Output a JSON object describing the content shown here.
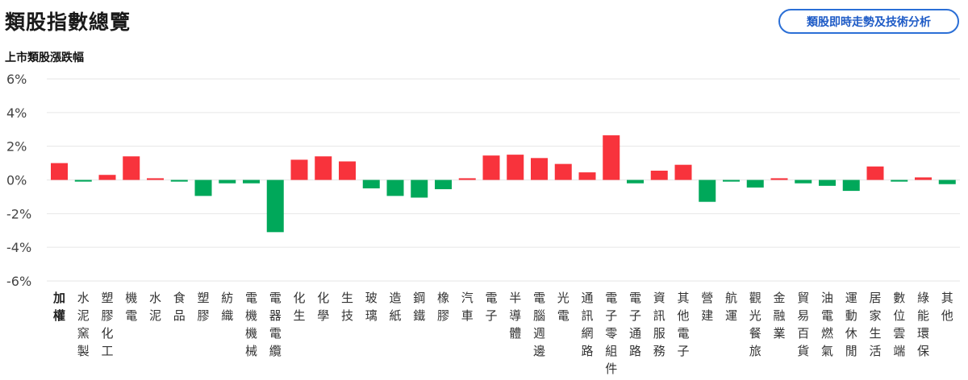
{
  "header": {
    "title": "類股指數總覽",
    "button_label": "類股即時走勢及技術分析"
  },
  "colors": {
    "up": "#f8333c",
    "down": "#00a85a",
    "grid": "#e6e6e6",
    "button": "#2b6fd6"
  },
  "chart_data": {
    "type": "bar",
    "title": "上市類股漲跌幅",
    "xlabel": "",
    "ylabel": "",
    "ylim": [
      -6,
      6
    ],
    "yticks": [
      6,
      4,
      2,
      0,
      -2,
      -4,
      -6
    ],
    "ytick_labels": [
      "6%",
      "4%",
      "2%",
      "0%",
      "-2%",
      "-4%",
      "-6%"
    ],
    "grid": true,
    "categories": [
      "加權",
      "水泥窯製",
      "塑膠化工",
      "機電",
      "水泥",
      "食品",
      "塑膠",
      "紡織",
      "電機機械",
      "電器電纜",
      "化生",
      "化學",
      "生技",
      "玻璃",
      "造紙",
      "鋼鐵",
      "橡膠",
      "汽車",
      "電子",
      "半導體",
      "電腦週邊",
      "光電",
      "通訊網路",
      "電子零組件",
      "電子通路",
      "資訊服務",
      "其他電子",
      "營建",
      "航運",
      "觀光餐旅",
      "金融業",
      "貿易百貨",
      "油電燃氣",
      "運動休閒",
      "居家生活",
      "數位雲端",
      "綠能環保",
      "其他"
    ],
    "values": [
      1.0,
      -0.1,
      0.3,
      1.4,
      0.1,
      -0.1,
      -0.95,
      -0.2,
      -0.2,
      -3.1,
      1.2,
      1.4,
      1.1,
      -0.5,
      -0.95,
      -1.05,
      -0.55,
      0.1,
      1.45,
      1.5,
      1.3,
      0.95,
      0.45,
      2.65,
      -0.2,
      0.55,
      0.9,
      -1.3,
      -0.1,
      -0.45,
      0.1,
      -0.2,
      -0.35,
      -0.65,
      0.8,
      -0.1,
      0.15,
      -0.25
    ]
  }
}
